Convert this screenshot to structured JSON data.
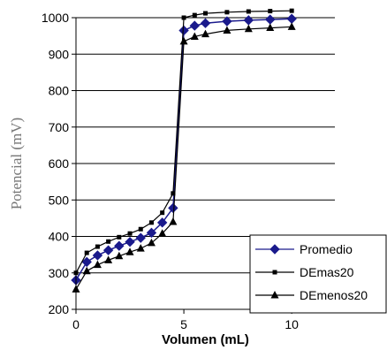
{
  "chart_data": {
    "type": "line",
    "xlabel": "Volumen (mL)",
    "ylabel": "Potencial (mV)",
    "xlim": [
      0,
      12
    ],
    "ylim": [
      200,
      1000
    ],
    "xticks": [
      0,
      5,
      10
    ],
    "yticks": [
      200,
      300,
      400,
      500,
      600,
      700,
      800,
      900,
      1000
    ],
    "grid": "horizontal",
    "legend_position": "bottom-right",
    "series": [
      {
        "name": "Promedio",
        "color": "#1a1a8c",
        "marker": "diamond",
        "x": [
          0,
          0.5,
          1,
          1.5,
          2,
          2.5,
          3,
          3.5,
          4,
          4.5,
          5,
          5.5,
          6,
          7,
          8,
          9,
          10
        ],
        "y": [
          280,
          330,
          348,
          362,
          374,
          385,
          396,
          410,
          438,
          478,
          965,
          978,
          985,
          990,
          993,
          995,
          997
        ]
      },
      {
        "name": "DEmas20",
        "color": "#000000",
        "marker": "square",
        "x": [
          0,
          0.5,
          1,
          1.5,
          2,
          2.5,
          3,
          3.5,
          4,
          4.5,
          5,
          5.5,
          6,
          7,
          8,
          9,
          10
        ],
        "y": [
          300,
          355,
          372,
          386,
          398,
          408,
          420,
          438,
          465,
          518,
          1000,
          1007,
          1012,
          1015,
          1017,
          1018,
          1019
        ]
      },
      {
        "name": "DEmenos20",
        "color": "#000000",
        "marker": "triangle",
        "x": [
          0,
          0.5,
          1,
          1.5,
          2,
          2.5,
          3,
          3.5,
          4,
          4.5,
          5,
          5.5,
          6,
          7,
          8,
          9,
          10
        ],
        "y": [
          255,
          305,
          322,
          335,
          346,
          357,
          367,
          382,
          408,
          440,
          935,
          948,
          955,
          965,
          969,
          972,
          975
        ]
      }
    ]
  }
}
